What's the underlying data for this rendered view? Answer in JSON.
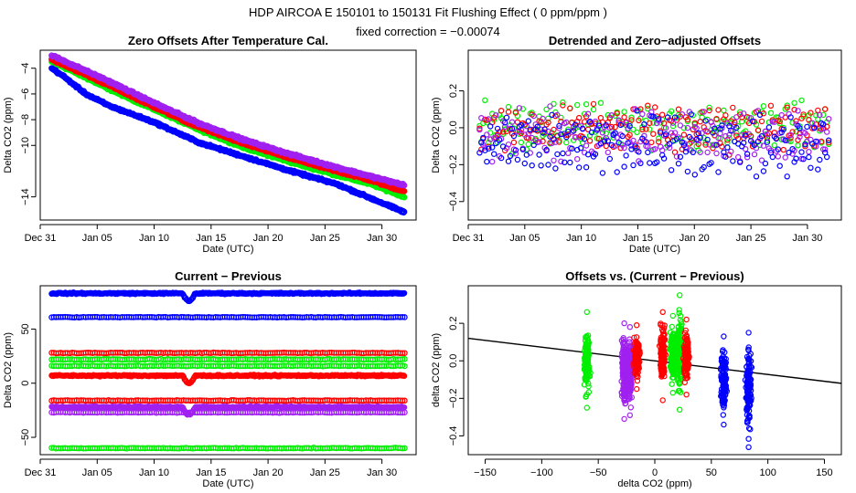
{
  "header": {
    "title": "HDP    AIRCOA E    150101 to 150131    Fit Flushing Effect ( 0 ppm/ppm )",
    "subtitle": "fixed correction = −0.00074"
  },
  "chart_data": [
    {
      "id": "p1",
      "type": "scatter",
      "title": "Zero Offsets After Temperature Cal.",
      "xlabel": "Date (UTC)",
      "ylabel": "Delta CO2 (ppm)",
      "xlim": [
        0,
        33
      ],
      "ylim": [
        -15.8,
        -2.6
      ],
      "xticks": [
        0,
        5,
        10,
        15,
        20,
        25,
        30
      ],
      "xtick_labels": [
        "Dec 31",
        "Jan 05",
        "Jan 10",
        "Jan 15",
        "Jan 20",
        "Jan 25",
        "Jan 30"
      ],
      "yticks": [
        -14,
        -10,
        -8,
        -6,
        -4
      ],
      "ytick_labels": [
        "−14",
        "−10",
        "−8",
        "−6",
        "−4"
      ],
      "series": [
        {
          "name": "green",
          "color": "#00ee00",
          "x": [
            1,
            3,
            6,
            10,
            14,
            18,
            22,
            26,
            29,
            32
          ],
          "y": [
            -3.5,
            -4.3,
            -5.6,
            -7.2,
            -8.8,
            -10.2,
            -11.3,
            -12.3,
            -13.0,
            -14.0
          ]
        },
        {
          "name": "red",
          "color": "#ff0000",
          "x": [
            1,
            3,
            6,
            10,
            14,
            18,
            22,
            26,
            29,
            32
          ],
          "y": [
            -3.3,
            -4.1,
            -5.3,
            -7.0,
            -8.6,
            -9.9,
            -11.0,
            -12.0,
            -12.7,
            -13.6
          ]
        },
        {
          "name": "purple",
          "color": "#a020f0",
          "x": [
            1,
            3,
            6,
            10,
            14,
            18,
            22,
            26,
            29,
            32
          ],
          "y": [
            -3.0,
            -3.8,
            -5.0,
            -6.7,
            -8.3,
            -9.6,
            -10.7,
            -11.7,
            -12.4,
            -13.1
          ]
        },
        {
          "name": "blue",
          "color": "#0000ff",
          "x": [
            1,
            2,
            4,
            6,
            10,
            14,
            18,
            22,
            26,
            29,
            32
          ],
          "y": [
            -4.0,
            -4.6,
            -6.0,
            -6.9,
            -8.2,
            -9.8,
            -10.9,
            -12.0,
            -13.0,
            -14.1,
            -15.2
          ]
        }
      ]
    },
    {
      "id": "p2",
      "type": "scatter",
      "title": "Detrended and Zero−adjusted Offsets",
      "xlabel": "Date (UTC)",
      "ylabel": "Delta CO2 (ppm)",
      "xlim": [
        0,
        33
      ],
      "ylim": [
        -0.5,
        0.42
      ],
      "xticks": [
        0,
        5,
        10,
        15,
        20,
        25,
        30
      ],
      "xtick_labels": [
        "Dec 31",
        "Jan 05",
        "Jan 10",
        "Jan 15",
        "Jan 20",
        "Jan 25",
        "Jan 30"
      ],
      "yticks": [
        -0.4,
        -0.2,
        0.0,
        0.2
      ],
      "ytick_labels": [
        "−0.4",
        "−0.2",
        "0.0",
        "0.2"
      ],
      "series": [
        {
          "name": "green",
          "color": "#00ee00",
          "center": 0.01,
          "spread": 0.16
        },
        {
          "name": "red",
          "color": "#ff0000",
          "center": 0.0,
          "spread": 0.15
        },
        {
          "name": "purple",
          "color": "#a020f0",
          "center": -0.05,
          "spread": 0.17
        },
        {
          "name": "blue",
          "color": "#0000ff",
          "center": -0.09,
          "spread": 0.2
        }
      ]
    },
    {
      "id": "p3",
      "type": "scatter",
      "title": "Current − Previous",
      "xlabel": "Date (UTC)",
      "ylabel": "Delta CO2 (ppm)",
      "xlim": [
        0,
        33
      ],
      "ylim": [
        -66,
        90
      ],
      "xticks": [
        0,
        5,
        10,
        15,
        20,
        25,
        30
      ],
      "xtick_labels": [
        "Dec 31",
        "Jan 05",
        "Jan 10",
        "Jan 15",
        "Jan 20",
        "Jan 25",
        "Jan 30"
      ],
      "yticks": [
        -50,
        0,
        50
      ],
      "ytick_labels": [
        "−50",
        "0",
        "50"
      ],
      "series": [
        {
          "name": "blue",
          "color": "#0000ff",
          "level": 83
        },
        {
          "name": "blue",
          "color": "#0000ff",
          "level": 61
        },
        {
          "name": "red",
          "color": "#ff0000",
          "level": 28
        },
        {
          "name": "green",
          "color": "#00ee00",
          "level": 22
        },
        {
          "name": "green",
          "color": "#00ee00",
          "level": 16
        },
        {
          "name": "red",
          "color": "#ff0000",
          "level": 7
        },
        {
          "name": "red",
          "color": "#ff0000",
          "level": -16
        },
        {
          "name": "purple",
          "color": "#a020f0",
          "level": -22
        },
        {
          "name": "purple",
          "color": "#a020f0",
          "level": -27
        },
        {
          "name": "green",
          "color": "#00ee00",
          "level": -60
        }
      ]
    },
    {
      "id": "p4",
      "type": "scatter",
      "title": "Offsets vs. (Current − Previous)",
      "xlabel": "delta CO2 (ppm)",
      "ylabel": "delta CO2 (ppm)",
      "xlim": [
        -165,
        165
      ],
      "ylim": [
        -0.5,
        0.4
      ],
      "xticks": [
        -150,
        -100,
        -50,
        0,
        50,
        100,
        150
      ],
      "xtick_labels": [
        "−150",
        "−100",
        "−50",
        "0",
        "50",
        "100",
        "150"
      ],
      "yticks": [
        -0.4,
        -0.2,
        0.0,
        0.2
      ],
      "ytick_labels": [
        "−0.4",
        "−0.2",
        "0.0",
        "0.2"
      ],
      "fit_line": {
        "x": [
          -165,
          165
        ],
        "y": [
          0.12,
          -0.12
        ],
        "color": "#000000"
      },
      "series": [
        {
          "name": "green",
          "color": "#00ee00",
          "x": -60,
          "ymin": -0.25,
          "ymax": 0.26
        },
        {
          "name": "purple",
          "color": "#a020f0",
          "x": -27,
          "ymin": -0.31,
          "ymax": 0.2
        },
        {
          "name": "purple",
          "color": "#a020f0",
          "x": -22,
          "ymin": -0.29,
          "ymax": 0.18
        },
        {
          "name": "red",
          "color": "#ff0000",
          "x": -16,
          "ymin": -0.15,
          "ymax": 0.19
        },
        {
          "name": "red",
          "color": "#ff0000",
          "x": 7,
          "ymin": -0.21,
          "ymax": 0.26
        },
        {
          "name": "green",
          "color": "#00ee00",
          "x": 16,
          "ymin": -0.17,
          "ymax": 0.24
        },
        {
          "name": "green",
          "color": "#00ee00",
          "x": 22,
          "ymin": -0.26,
          "ymax": 0.35
        },
        {
          "name": "red",
          "color": "#ff0000",
          "x": 28,
          "ymin": -0.18,
          "ymax": 0.22
        },
        {
          "name": "blue",
          "color": "#0000ff",
          "x": 61,
          "ymin": -0.34,
          "ymax": 0.13
        },
        {
          "name": "blue",
          "color": "#0000ff",
          "x": 83,
          "ymin": -0.46,
          "ymax": 0.15
        }
      ]
    }
  ]
}
